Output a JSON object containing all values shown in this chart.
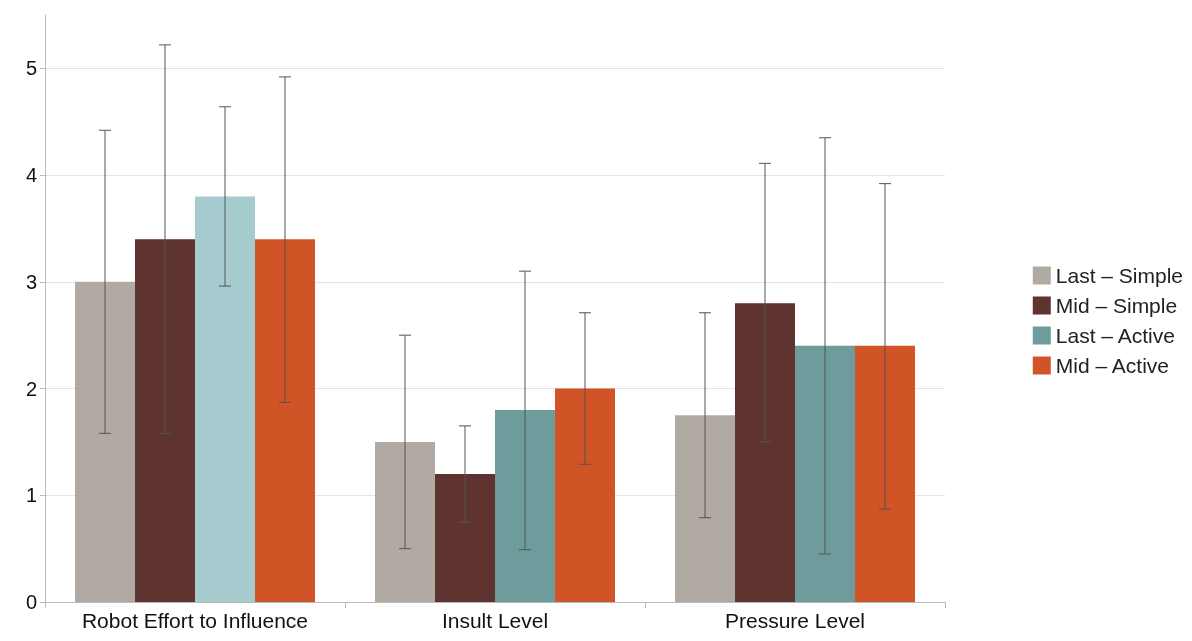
{
  "chart_data": {
    "type": "bar",
    "categories": [
      "Robot Effort to Influence",
      "Insult Level",
      "Pressure Level"
    ],
    "series": [
      {
        "name": "Last – Simple",
        "color": "#b1aaa3",
        "values": [
          3.0,
          1.5,
          1.75
        ],
        "errors": [
          [
            1.58,
            4.42
          ],
          [
            0.5,
            2.5
          ],
          [
            0.79,
            2.71
          ]
        ]
      },
      {
        "name": "Mid – Simple",
        "color": "#5e3330",
        "values": [
          3.4,
          1.2,
          2.8
        ],
        "errors": [
          [
            1.58,
            5.22
          ],
          [
            0.75,
            1.65
          ],
          [
            1.5,
            4.11
          ]
        ]
      },
      {
        "name": "Last – Active",
        "color": "#6e9c9c",
        "colors": [
          "#a6cbcf",
          "#6e9c9c",
          "#6e9c9c"
        ],
        "values": [
          3.8,
          1.8,
          2.4
        ],
        "errors": [
          [
            2.96,
            4.64
          ],
          [
            0.49,
            3.1
          ],
          [
            0.45,
            4.35
          ]
        ]
      },
      {
        "name": "Mid – Active",
        "color": "#d05426",
        "values": [
          3.4,
          2.0,
          2.4
        ],
        "errors": [
          [
            1.87,
            4.92
          ],
          [
            1.29,
            2.71
          ],
          [
            0.87,
            3.92
          ]
        ]
      }
    ],
    "ylim": [
      0,
      5.5
    ],
    "yticks": [
      0,
      1,
      2,
      3,
      4,
      5
    ],
    "grid": "y",
    "legend": "right"
  }
}
